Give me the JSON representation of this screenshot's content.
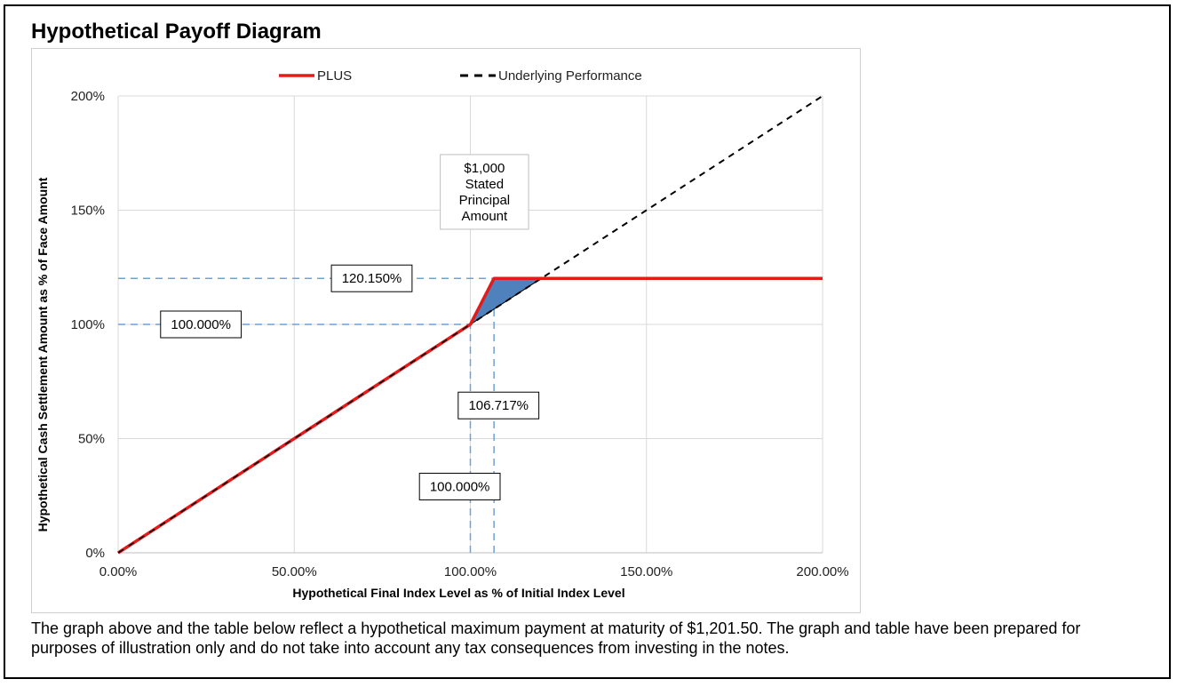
{
  "title": "Hypothetical Payoff Diagram",
  "caption": "The graph above and the table below reflect a hypothetical maximum payment at maturity of $1,201.50. The graph and table have been prepared for purposes of illustration only and do not take into account any tax consequences from investing in the notes.",
  "chart_data": {
    "type": "line",
    "xlabel": "Hypothetical Final Index Level as % of Initial Index Level",
    "ylabel": "Hypothetical Cash Settlement Amount as % of Face Amount",
    "xlim": [
      0,
      200
    ],
    "ylim": [
      0,
      200
    ],
    "x_ticks": [
      0,
      50,
      100,
      150,
      200
    ],
    "x_tick_labels": [
      "0.00%",
      "50.00%",
      "100.00%",
      "150.00%",
      "200.00%"
    ],
    "y_ticks": [
      0,
      50,
      100,
      150,
      200
    ],
    "y_tick_labels": [
      "0%",
      "50%",
      "100%",
      "150%",
      "200%"
    ],
    "grid": true,
    "legend_position": "top",
    "series": [
      {
        "name": "PLUS",
        "color": "#e31b1b",
        "style": "solid",
        "points": [
          [
            0,
            0
          ],
          [
            100,
            100
          ],
          [
            106.717,
            120.15
          ],
          [
            200,
            120.15
          ]
        ]
      },
      {
        "name": "Underlying Performance",
        "color": "#000000",
        "style": "dashed",
        "points": [
          [
            0,
            0
          ],
          [
            200,
            200
          ]
        ]
      }
    ],
    "shaded_region": {
      "color": "#4f81bd",
      "points": [
        [
          100,
          100
        ],
        [
          106.717,
          120.15
        ],
        [
          120.15,
          120.15
        ]
      ]
    },
    "reference_lines": [
      {
        "axis": "y",
        "value": 120.15,
        "x_to": 106.717
      },
      {
        "axis": "y",
        "value": 100,
        "x_to": 100
      },
      {
        "axis": "x",
        "value": 100,
        "y_to": 100
      },
      {
        "axis": "x",
        "value": 106.717,
        "y_to": 120.15
      }
    ],
    "annotations": [
      {
        "id": "principal",
        "lines": [
          "$1,000",
          "Stated",
          "Principal",
          "Amount"
        ],
        "x": 104,
        "y": 158
      },
      {
        "id": "cap_y",
        "text": "120.150%",
        "x": 72,
        "y": 120.15
      },
      {
        "id": "base_y",
        "text": "100.000%",
        "x": 23.5,
        "y": 100
      },
      {
        "id": "cap_x",
        "text": "106.717%",
        "x": 108,
        "y": 64.5
      },
      {
        "id": "base_x",
        "text": "100.000%",
        "x": 97,
        "y": 29
      }
    ]
  }
}
